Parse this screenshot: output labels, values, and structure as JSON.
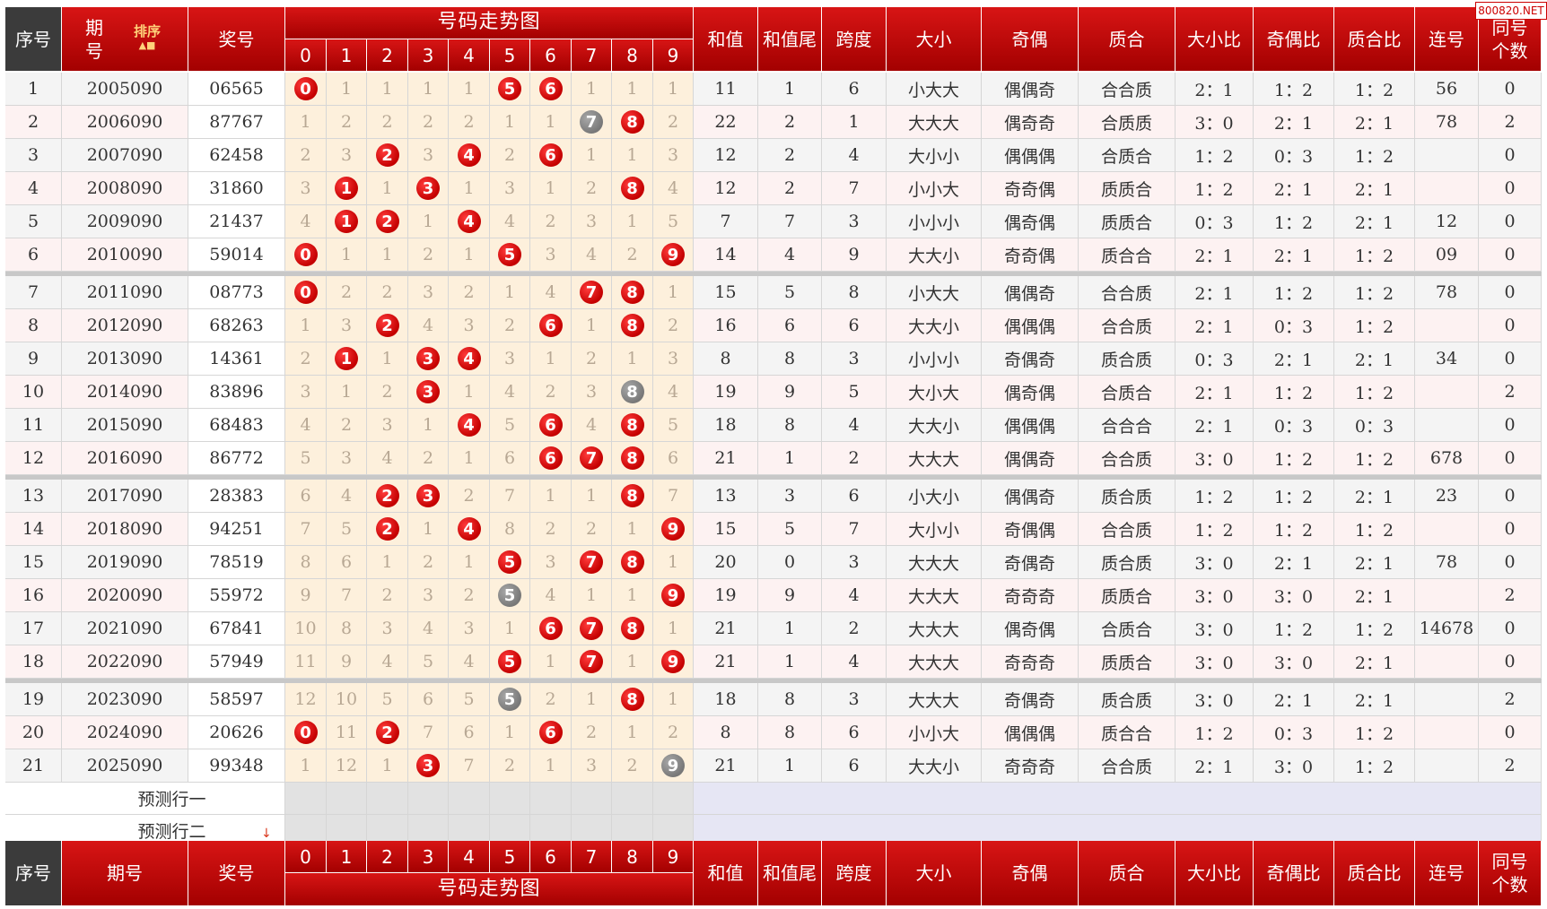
{
  "watermark": "800820.NET",
  "sort_label": "排序",
  "sort_arrows": "▲■",
  "bottom_arrow": "↓",
  "header": {
    "seq": "序号",
    "period": "期号",
    "period_top": "期\n号",
    "prize": "奖号",
    "trend": "号码走势图",
    "digits": [
      "0",
      "1",
      "2",
      "3",
      "4",
      "5",
      "6",
      "7",
      "8",
      "9"
    ],
    "sum": "和值",
    "sum_tail": "和值尾",
    "span": "跨度",
    "size": "大小",
    "parity": "奇偶",
    "prime": "质合",
    "size_ratio": "大小比",
    "parity_ratio": "奇偶比",
    "prime_ratio": "质合比",
    "consecutive": "连号",
    "same_count": "同号\n个数"
  },
  "prediction_rows": [
    "预测行一",
    "预测行二"
  ],
  "colors": {
    "header_red": "#c40000",
    "ball_red": "#d10000",
    "ball_gray": "#8a8a8a",
    "trend_bg": "#fdf0dc"
  },
  "rows": [
    {
      "seq": "1",
      "period": "2005090",
      "prize": "06565",
      "trend": [
        [
          "0",
          "r"
        ],
        "1",
        "1",
        "1",
        "1",
        [
          "5",
          "r"
        ],
        [
          "6",
          "r"
        ],
        "1",
        "1",
        "1"
      ],
      "sum": "11",
      "tail": "1",
      "span": "6",
      "size": "小大大",
      "parity": "偶偶奇",
      "prime": "合合质",
      "sr": "2：1",
      "pr": "1：2",
      "qr": "1：2",
      "consec": "56",
      "same": "0"
    },
    {
      "seq": "2",
      "period": "2006090",
      "prize": "87767",
      "trend": [
        "1",
        "2",
        "2",
        "2",
        "2",
        "1",
        "1",
        [
          "7",
          "g"
        ],
        [
          "8",
          "r"
        ],
        "2"
      ],
      "sum": "22",
      "tail": "2",
      "span": "1",
      "size": "大大大",
      "parity": "偶奇奇",
      "prime": "合质质",
      "sr": "3：0",
      "pr": "2：1",
      "qr": "2：1",
      "consec": "78",
      "same": "2"
    },
    {
      "seq": "3",
      "period": "2007090",
      "prize": "62458",
      "trend": [
        "2",
        "3",
        [
          "2",
          "r"
        ],
        "3",
        [
          "4",
          "r"
        ],
        "2",
        [
          "6",
          "r"
        ],
        "1",
        "1",
        "3"
      ],
      "sum": "12",
      "tail": "2",
      "span": "4",
      "size": "大小小",
      "parity": "偶偶偶",
      "prime": "合质合",
      "sr": "1：2",
      "pr": "0：3",
      "qr": "1：2",
      "consec": "",
      "same": "0"
    },
    {
      "seq": "4",
      "period": "2008090",
      "prize": "31860",
      "trend": [
        "3",
        [
          "1",
          "r"
        ],
        "1",
        [
          "3",
          "r"
        ],
        "1",
        "3",
        "1",
        "2",
        [
          "8",
          "r"
        ],
        "4"
      ],
      "sum": "12",
      "tail": "2",
      "span": "7",
      "size": "小小大",
      "parity": "奇奇偶",
      "prime": "质质合",
      "sr": "1：2",
      "pr": "2：1",
      "qr": "2：1",
      "consec": "",
      "same": "0"
    },
    {
      "seq": "5",
      "period": "2009090",
      "prize": "21437",
      "trend": [
        "4",
        [
          "1",
          "r"
        ],
        [
          "2",
          "r"
        ],
        "1",
        [
          "4",
          "r"
        ],
        "4",
        "2",
        "3",
        "1",
        "5"
      ],
      "sum": "7",
      "tail": "7",
      "span": "3",
      "size": "小小小",
      "parity": "偶奇偶",
      "prime": "质质合",
      "sr": "0：3",
      "pr": "1：2",
      "qr": "2：1",
      "consec": "12",
      "same": "0"
    },
    {
      "seq": "6",
      "period": "2010090",
      "prize": "59014",
      "trend": [
        [
          "0",
          "r"
        ],
        "1",
        "1",
        "2",
        "1",
        [
          "5",
          "r"
        ],
        "3",
        "4",
        "2",
        [
          "9",
          "r"
        ]
      ],
      "sum": "14",
      "tail": "4",
      "span": "9",
      "size": "大大小",
      "parity": "奇奇偶",
      "prime": "质合合",
      "sr": "2：1",
      "pr": "2：1",
      "qr": "1：2",
      "consec": "09",
      "same": "0"
    },
    {
      "seq": "7",
      "period": "2011090",
      "prize": "08773",
      "trend": [
        [
          "0",
          "r"
        ],
        "2",
        "2",
        "3",
        "2",
        "1",
        "4",
        [
          "7",
          "r"
        ],
        [
          "8",
          "r"
        ],
        "1"
      ],
      "sum": "15",
      "tail": "5",
      "span": "8",
      "size": "小大大",
      "parity": "偶偶奇",
      "prime": "合合质",
      "sr": "2：1",
      "pr": "1：2",
      "qr": "1：2",
      "consec": "78",
      "same": "0"
    },
    {
      "seq": "8",
      "period": "2012090",
      "prize": "68263",
      "trend": [
        "1",
        "3",
        [
          "2",
          "r"
        ],
        "4",
        "3",
        "2",
        [
          "6",
          "r"
        ],
        "1",
        [
          "8",
          "r"
        ],
        "2"
      ],
      "sum": "16",
      "tail": "6",
      "span": "6",
      "size": "大大小",
      "parity": "偶偶偶",
      "prime": "合合质",
      "sr": "2：1",
      "pr": "0：3",
      "qr": "1：2",
      "consec": "",
      "same": "0"
    },
    {
      "seq": "9",
      "period": "2013090",
      "prize": "14361",
      "trend": [
        "2",
        [
          "1",
          "r"
        ],
        "1",
        [
          "3",
          "r"
        ],
        [
          "4",
          "r"
        ],
        "3",
        "1",
        "2",
        "1",
        "3"
      ],
      "sum": "8",
      "tail": "8",
      "span": "3",
      "size": "小小小",
      "parity": "奇偶奇",
      "prime": "质合质",
      "sr": "0：3",
      "pr": "2：1",
      "qr": "2：1",
      "consec": "34",
      "same": "0"
    },
    {
      "seq": "10",
      "period": "2014090",
      "prize": "83896",
      "trend": [
        "3",
        "1",
        "2",
        [
          "3",
          "r"
        ],
        "1",
        "4",
        "2",
        "3",
        [
          "8",
          "g"
        ],
        "4"
      ],
      "sum": "19",
      "tail": "9",
      "span": "5",
      "size": "大小大",
      "parity": "偶奇偶",
      "prime": "合质合",
      "sr": "2：1",
      "pr": "1：2",
      "qr": "1：2",
      "consec": "",
      "same": "2"
    },
    {
      "seq": "11",
      "period": "2015090",
      "prize": "68483",
      "trend": [
        "4",
        "2",
        "3",
        "1",
        [
          "4",
          "r"
        ],
        "5",
        [
          "6",
          "r"
        ],
        "4",
        [
          "8",
          "r"
        ],
        "5"
      ],
      "sum": "18",
      "tail": "8",
      "span": "4",
      "size": "大大小",
      "parity": "偶偶偶",
      "prime": "合合合",
      "sr": "2：1",
      "pr": "0：3",
      "qr": "0：3",
      "consec": "",
      "same": "0"
    },
    {
      "seq": "12",
      "period": "2016090",
      "prize": "86772",
      "trend": [
        "5",
        "3",
        "4",
        "2",
        "1",
        "6",
        [
          "6",
          "r"
        ],
        [
          "7",
          "r"
        ],
        [
          "8",
          "r"
        ],
        "6"
      ],
      "sum": "21",
      "tail": "1",
      "span": "2",
      "size": "大大大",
      "parity": "偶偶奇",
      "prime": "合合质",
      "sr": "3：0",
      "pr": "1：2",
      "qr": "1：2",
      "consec": "678",
      "same": "0"
    },
    {
      "seq": "13",
      "period": "2017090",
      "prize": "28383",
      "trend": [
        "6",
        "4",
        [
          "2",
          "r"
        ],
        [
          "3",
          "r"
        ],
        "2",
        "7",
        "1",
        "1",
        [
          "8",
          "r"
        ],
        "7"
      ],
      "sum": "13",
      "tail": "3",
      "span": "6",
      "size": "小大小",
      "parity": "偶偶奇",
      "prime": "质合质",
      "sr": "1：2",
      "pr": "1：2",
      "qr": "2：1",
      "consec": "23",
      "same": "0"
    },
    {
      "seq": "14",
      "period": "2018090",
      "prize": "94251",
      "trend": [
        "7",
        "5",
        [
          "2",
          "r"
        ],
        "1",
        [
          "4",
          "r"
        ],
        "8",
        "2",
        "2",
        "1",
        [
          "9",
          "r"
        ]
      ],
      "sum": "15",
      "tail": "5",
      "span": "7",
      "size": "大小小",
      "parity": "奇偶偶",
      "prime": "合合质",
      "sr": "1：2",
      "pr": "1：2",
      "qr": "1：2",
      "consec": "",
      "same": "0"
    },
    {
      "seq": "15",
      "period": "2019090",
      "prize": "78519",
      "trend": [
        "8",
        "6",
        "1",
        "2",
        "1",
        [
          "5",
          "r"
        ],
        "3",
        [
          "7",
          "r"
        ],
        [
          "8",
          "r"
        ],
        "1"
      ],
      "sum": "20",
      "tail": "0",
      "span": "3",
      "size": "大大大",
      "parity": "奇偶奇",
      "prime": "质合质",
      "sr": "3：0",
      "pr": "2：1",
      "qr": "2：1",
      "consec": "78",
      "same": "0"
    },
    {
      "seq": "16",
      "period": "2020090",
      "prize": "55972",
      "trend": [
        "9",
        "7",
        "2",
        "3",
        "2",
        [
          "5",
          "g"
        ],
        "4",
        "1",
        "1",
        [
          "9",
          "r"
        ]
      ],
      "sum": "19",
      "tail": "9",
      "span": "4",
      "size": "大大大",
      "parity": "奇奇奇",
      "prime": "质质合",
      "sr": "3：0",
      "pr": "3：0",
      "qr": "2：1",
      "consec": "",
      "same": "2"
    },
    {
      "seq": "17",
      "period": "2021090",
      "prize": "67841",
      "trend": [
        "10",
        "8",
        "3",
        "4",
        "3",
        "1",
        [
          "6",
          "r"
        ],
        [
          "7",
          "r"
        ],
        [
          "8",
          "r"
        ],
        "1"
      ],
      "sum": "21",
      "tail": "1",
      "span": "2",
      "size": "大大大",
      "parity": "偶奇偶",
      "prime": "合质合",
      "sr": "3：0",
      "pr": "1：2",
      "qr": "1：2",
      "consec": "14678",
      "same": "0"
    },
    {
      "seq": "18",
      "period": "2022090",
      "prize": "57949",
      "trend": [
        "11",
        "9",
        "4",
        "5",
        "4",
        [
          "5",
          "r"
        ],
        "1",
        [
          "7",
          "r"
        ],
        "1",
        [
          "9",
          "r"
        ]
      ],
      "sum": "21",
      "tail": "1",
      "span": "4",
      "size": "大大大",
      "parity": "奇奇奇",
      "prime": "质质合",
      "sr": "3：0",
      "pr": "3：0",
      "qr": "2：1",
      "consec": "",
      "same": "0"
    },
    {
      "seq": "19",
      "period": "2023090",
      "prize": "58597",
      "trend": [
        "12",
        "10",
        "5",
        "6",
        "5",
        [
          "5",
          "g"
        ],
        "2",
        "1",
        [
          "8",
          "r"
        ],
        "1"
      ],
      "sum": "18",
      "tail": "8",
      "span": "3",
      "size": "大大大",
      "parity": "奇偶奇",
      "prime": "质合质",
      "sr": "3：0",
      "pr": "2：1",
      "qr": "2：1",
      "consec": "",
      "same": "2"
    },
    {
      "seq": "20",
      "period": "2024090",
      "prize": "20626",
      "trend": [
        [
          "0",
          "r"
        ],
        "11",
        [
          "2",
          "r"
        ],
        "7",
        "6",
        "1",
        [
          "6",
          "r"
        ],
        "2",
        "1",
        "2"
      ],
      "sum": "8",
      "tail": "8",
      "span": "6",
      "size": "小小大",
      "parity": "偶偶偶",
      "prime": "质合合",
      "sr": "1：2",
      "pr": "0：3",
      "qr": "1：2",
      "consec": "",
      "same": "0"
    },
    {
      "seq": "21",
      "period": "2025090",
      "prize": "99348",
      "trend": [
        "1",
        "12",
        "1",
        [
          "3",
          "r"
        ],
        "7",
        "2",
        "1",
        "3",
        "2",
        [
          "9",
          "g"
        ]
      ],
      "sum": "21",
      "tail": "1",
      "span": "6",
      "size": "大大小",
      "parity": "奇奇奇",
      "prime": "合合质",
      "sr": "2：1",
      "pr": "3：0",
      "qr": "1：2",
      "consec": "",
      "same": "2"
    }
  ]
}
